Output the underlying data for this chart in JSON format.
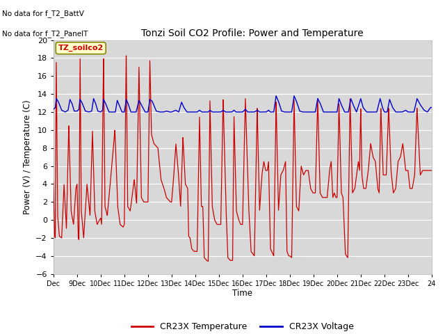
{
  "title": "Tonzi Soil CO2 Profile: Power and Temperature",
  "ylabel": "Power (V) / Temperature (C)",
  "xlabel": "Time",
  "top_left_text1": "No data for f_T2_BattV",
  "top_left_text2": "No data for f_T2_PanelT",
  "legend_label_box": "TZ_soilco2",
  "legend_entries": [
    "CR23X Temperature",
    "CR23X Voltage"
  ],
  "legend_colors": [
    "#cc0000",
    "#0000cc"
  ],
  "ylim": [
    -6,
    20
  ],
  "yticks": [
    -6,
    -4,
    -2,
    0,
    2,
    4,
    6,
    8,
    10,
    12,
    14,
    16,
    18,
    20
  ],
  "xlim": [
    8,
    24
  ],
  "background_color": "#ffffff",
  "plot_bg_color": "#d8d8d8",
  "grid_color": "#ffffff",
  "red_color": "#cc0000",
  "blue_color": "#0000cc",
  "red_kp": [
    [
      8.0,
      4.2
    ],
    [
      8.05,
      -1.8
    ],
    [
      8.08,
      -2.0
    ],
    [
      8.12,
      18.0
    ],
    [
      8.18,
      0.5
    ],
    [
      8.25,
      -1.8
    ],
    [
      8.35,
      -2.0
    ],
    [
      8.45,
      4.0
    ],
    [
      8.55,
      -1.0
    ],
    [
      8.65,
      10.5
    ],
    [
      8.75,
      1.0
    ],
    [
      8.85,
      -0.5
    ],
    [
      8.95,
      3.5
    ],
    [
      9.0,
      4.0
    ],
    [
      9.05,
      -2.0
    ],
    [
      9.08,
      -2.2
    ],
    [
      9.13,
      18.0
    ],
    [
      9.18,
      1.0
    ],
    [
      9.28,
      -2.0
    ],
    [
      9.42,
      4.0
    ],
    [
      9.55,
      0.5
    ],
    [
      9.65,
      10.0
    ],
    [
      9.75,
      1.0
    ],
    [
      9.85,
      -0.5
    ],
    [
      9.95,
      0.0
    ],
    [
      10.0,
      0.2
    ],
    [
      10.04,
      -0.5
    ],
    [
      10.12,
      18.2
    ],
    [
      10.18,
      1.5
    ],
    [
      10.28,
      0.5
    ],
    [
      10.42,
      4.5
    ],
    [
      10.6,
      10.0
    ],
    [
      10.72,
      1.5
    ],
    [
      10.82,
      -0.5
    ],
    [
      10.95,
      -0.8
    ],
    [
      11.0,
      -0.5
    ],
    [
      11.08,
      18.5
    ],
    [
      11.14,
      1.5
    ],
    [
      11.25,
      1.0
    ],
    [
      11.42,
      4.5
    ],
    [
      11.52,
      1.8
    ],
    [
      11.62,
      17.0
    ],
    [
      11.72,
      2.5
    ],
    [
      11.82,
      2.0
    ],
    [
      11.95,
      2.0
    ],
    [
      12.0,
      2.0
    ],
    [
      12.08,
      17.8
    ],
    [
      12.15,
      9.5
    ],
    [
      12.25,
      8.5
    ],
    [
      12.42,
      8.0
    ],
    [
      12.55,
      4.5
    ],
    [
      12.68,
      3.5
    ],
    [
      12.78,
      2.5
    ],
    [
      12.88,
      2.2
    ],
    [
      12.95,
      2.0
    ],
    [
      13.0,
      2.0
    ],
    [
      13.08,
      4.5
    ],
    [
      13.18,
      8.5
    ],
    [
      13.28,
      5.5
    ],
    [
      13.38,
      1.5
    ],
    [
      13.48,
      9.2
    ],
    [
      13.58,
      4.0
    ],
    [
      13.68,
      3.5
    ],
    [
      13.72,
      -1.8
    ],
    [
      13.78,
      -2.0
    ],
    [
      13.85,
      -3.2
    ],
    [
      13.95,
      -3.5
    ],
    [
      14.0,
      -3.5
    ],
    [
      14.08,
      -3.5
    ],
    [
      14.18,
      11.5
    ],
    [
      14.26,
      1.5
    ],
    [
      14.32,
      1.5
    ],
    [
      14.38,
      -4.2
    ],
    [
      14.48,
      -4.5
    ],
    [
      14.55,
      -4.6
    ],
    [
      14.62,
      13.5
    ],
    [
      14.72,
      1.5
    ],
    [
      14.82,
      0.0
    ],
    [
      14.92,
      -0.5
    ],
    [
      14.98,
      -0.5
    ],
    [
      15.0,
      -0.5
    ],
    [
      15.08,
      -0.5
    ],
    [
      15.18,
      13.5
    ],
    [
      15.3,
      1.5
    ],
    [
      15.38,
      -4.2
    ],
    [
      15.48,
      -4.5
    ],
    [
      15.58,
      -4.5
    ],
    [
      15.64,
      11.5
    ],
    [
      15.74,
      1.0
    ],
    [
      15.84,
      0.0
    ],
    [
      15.92,
      -0.5
    ],
    [
      15.98,
      -0.5
    ],
    [
      16.0,
      -0.5
    ],
    [
      16.12,
      13.5
    ],
    [
      16.26,
      1.5
    ],
    [
      16.36,
      -3.5
    ],
    [
      16.5,
      -4.0
    ],
    [
      16.62,
      12.5
    ],
    [
      16.72,
      1.0
    ],
    [
      16.82,
      5.0
    ],
    [
      16.9,
      6.5
    ],
    [
      16.98,
      5.5
    ],
    [
      17.0,
      5.5
    ],
    [
      17.05,
      5.5
    ],
    [
      17.1,
      6.5
    ],
    [
      17.18,
      -3.2
    ],
    [
      17.32,
      -4.0
    ],
    [
      17.42,
      13.2
    ],
    [
      17.52,
      1.0
    ],
    [
      17.62,
      5.0
    ],
    [
      17.72,
      5.5
    ],
    [
      17.82,
      6.5
    ],
    [
      17.88,
      -3.5
    ],
    [
      17.95,
      -4.0
    ],
    [
      18.0,
      -4.0
    ],
    [
      18.08,
      -4.2
    ],
    [
      18.18,
      13.5
    ],
    [
      18.28,
      1.5
    ],
    [
      18.38,
      1.0
    ],
    [
      18.48,
      6.0
    ],
    [
      18.58,
      5.0
    ],
    [
      18.68,
      5.5
    ],
    [
      18.78,
      5.5
    ],
    [
      18.88,
      3.5
    ],
    [
      18.98,
      3.0
    ],
    [
      19.0,
      3.0
    ],
    [
      19.08,
      3.0
    ],
    [
      19.18,
      13.5
    ],
    [
      19.28,
      3.0
    ],
    [
      19.38,
      2.5
    ],
    [
      19.48,
      2.5
    ],
    [
      19.58,
      2.5
    ],
    [
      19.68,
      5.5
    ],
    [
      19.75,
      6.5
    ],
    [
      19.82,
      2.5
    ],
    [
      19.88,
      3.0
    ],
    [
      19.95,
      2.5
    ],
    [
      20.0,
      2.5
    ],
    [
      20.08,
      13.0
    ],
    [
      20.18,
      3.0
    ],
    [
      20.25,
      2.5
    ],
    [
      20.35,
      -3.8
    ],
    [
      20.45,
      -4.2
    ],
    [
      20.55,
      13.5
    ],
    [
      20.65,
      3.0
    ],
    [
      20.75,
      3.5
    ],
    [
      20.85,
      5.5
    ],
    [
      20.9,
      6.5
    ],
    [
      20.95,
      5.5
    ],
    [
      21.0,
      12.5
    ],
    [
      21.05,
      5.0
    ],
    [
      21.12,
      3.5
    ],
    [
      21.22,
      3.5
    ],
    [
      21.32,
      5.5
    ],
    [
      21.42,
      8.5
    ],
    [
      21.52,
      7.0
    ],
    [
      21.62,
      6.5
    ],
    [
      21.72,
      3.5
    ],
    [
      21.78,
      3.0
    ],
    [
      21.85,
      12.5
    ],
    [
      21.95,
      5.0
    ],
    [
      22.0,
      5.0
    ],
    [
      22.08,
      5.0
    ],
    [
      22.18,
      12.5
    ],
    [
      22.28,
      5.5
    ],
    [
      22.38,
      3.0
    ],
    [
      22.48,
      3.5
    ],
    [
      22.58,
      6.5
    ],
    [
      22.68,
      7.0
    ],
    [
      22.78,
      8.5
    ],
    [
      22.9,
      5.5
    ],
    [
      22.98,
      5.5
    ],
    [
      23.0,
      5.5
    ],
    [
      23.08,
      3.5
    ],
    [
      23.18,
      3.5
    ],
    [
      23.28,
      5.0
    ],
    [
      23.38,
      12.5
    ],
    [
      23.52,
      5.0
    ],
    [
      23.62,
      5.5
    ],
    [
      23.72,
      5.5
    ],
    [
      23.85,
      5.5
    ],
    [
      23.95,
      5.5
    ],
    [
      24.0,
      5.5
    ]
  ],
  "blue_kp": [
    [
      8.0,
      12.3
    ],
    [
      8.08,
      12.5
    ],
    [
      8.12,
      13.5
    ],
    [
      8.2,
      13.2
    ],
    [
      8.35,
      12.2
    ],
    [
      8.5,
      12.0
    ],
    [
      8.62,
      12.2
    ],
    [
      8.7,
      13.4
    ],
    [
      8.78,
      13.0
    ],
    [
      8.88,
      12.1
    ],
    [
      9.0,
      12.1
    ],
    [
      9.08,
      12.3
    ],
    [
      9.12,
      13.4
    ],
    [
      9.2,
      13.1
    ],
    [
      9.35,
      12.1
    ],
    [
      9.5,
      12.0
    ],
    [
      9.62,
      12.1
    ],
    [
      9.7,
      13.5
    ],
    [
      9.78,
      13.0
    ],
    [
      9.88,
      12.1
    ],
    [
      10.0,
      12.0
    ],
    [
      10.08,
      12.2
    ],
    [
      10.12,
      13.4
    ],
    [
      10.2,
      13.0
    ],
    [
      10.35,
      12.0
    ],
    [
      10.5,
      12.0
    ],
    [
      10.62,
      12.0
    ],
    [
      10.7,
      13.3
    ],
    [
      10.78,
      12.8
    ],
    [
      10.9,
      12.0
    ],
    [
      11.0,
      12.0
    ],
    [
      11.08,
      13.4
    ],
    [
      11.15,
      13.0
    ],
    [
      11.28,
      12.0
    ],
    [
      11.5,
      12.0
    ],
    [
      11.62,
      13.3
    ],
    [
      11.72,
      12.8
    ],
    [
      11.88,
      12.0
    ],
    [
      12.0,
      12.0
    ],
    [
      12.08,
      13.4
    ],
    [
      12.18,
      13.2
    ],
    [
      12.35,
      12.1
    ],
    [
      12.5,
      12.0
    ],
    [
      12.65,
      12.0
    ],
    [
      12.78,
      12.1
    ],
    [
      12.92,
      12.0
    ],
    [
      13.0,
      12.0
    ],
    [
      13.08,
      12.1
    ],
    [
      13.18,
      12.2
    ],
    [
      13.3,
      12.0
    ],
    [
      13.42,
      13.1
    ],
    [
      13.52,
      12.5
    ],
    [
      13.65,
      12.0
    ],
    [
      13.78,
      12.0
    ],
    [
      13.92,
      12.0
    ],
    [
      14.0,
      12.0
    ],
    [
      14.08,
      12.0
    ],
    [
      14.18,
      12.2
    ],
    [
      14.28,
      12.0
    ],
    [
      14.42,
      12.0
    ],
    [
      14.55,
      12.0
    ],
    [
      14.62,
      12.2
    ],
    [
      14.72,
      12.0
    ],
    [
      14.88,
      12.0
    ],
    [
      15.0,
      12.0
    ],
    [
      15.08,
      12.0
    ],
    [
      15.18,
      12.2
    ],
    [
      15.28,
      12.0
    ],
    [
      15.42,
      12.0
    ],
    [
      15.55,
      12.0
    ],
    [
      15.64,
      12.2
    ],
    [
      15.72,
      12.0
    ],
    [
      15.88,
      12.0
    ],
    [
      16.0,
      12.0
    ],
    [
      16.12,
      12.3
    ],
    [
      16.22,
      12.0
    ],
    [
      16.35,
      12.0
    ],
    [
      16.5,
      12.0
    ],
    [
      16.62,
      12.2
    ],
    [
      16.72,
      12.0
    ],
    [
      16.88,
      12.0
    ],
    [
      17.0,
      12.0
    ],
    [
      17.1,
      12.2
    ],
    [
      17.18,
      12.0
    ],
    [
      17.32,
      12.0
    ],
    [
      17.42,
      13.8
    ],
    [
      17.52,
      13.2
    ],
    [
      17.65,
      12.1
    ],
    [
      17.78,
      12.0
    ],
    [
      17.88,
      12.0
    ],
    [
      18.0,
      12.0
    ],
    [
      18.08,
      12.0
    ],
    [
      18.18,
      13.8
    ],
    [
      18.28,
      13.2
    ],
    [
      18.42,
      12.1
    ],
    [
      18.55,
      12.0
    ],
    [
      18.68,
      12.0
    ],
    [
      18.82,
      12.0
    ],
    [
      19.0,
      12.0
    ],
    [
      19.08,
      12.0
    ],
    [
      19.18,
      13.5
    ],
    [
      19.28,
      13.0
    ],
    [
      19.42,
      12.0
    ],
    [
      19.55,
      12.0
    ],
    [
      19.68,
      12.0
    ],
    [
      19.82,
      12.0
    ],
    [
      20.0,
      12.0
    ],
    [
      20.08,
      13.5
    ],
    [
      20.18,
      12.8
    ],
    [
      20.32,
      12.0
    ],
    [
      20.48,
      12.0
    ],
    [
      20.58,
      13.5
    ],
    [
      20.68,
      12.8
    ],
    [
      20.82,
      12.0
    ],
    [
      21.0,
      13.5
    ],
    [
      21.1,
      12.5
    ],
    [
      21.25,
      12.0
    ],
    [
      21.42,
      12.0
    ],
    [
      21.55,
      12.0
    ],
    [
      21.68,
      12.0
    ],
    [
      21.82,
      13.5
    ],
    [
      21.92,
      12.5
    ],
    [
      22.0,
      12.0
    ],
    [
      22.12,
      12.0
    ],
    [
      22.22,
      13.4
    ],
    [
      22.35,
      12.5
    ],
    [
      22.48,
      12.0
    ],
    [
      22.62,
      12.0
    ],
    [
      22.75,
      12.0
    ],
    [
      22.9,
      12.2
    ],
    [
      23.0,
      12.0
    ],
    [
      23.12,
      12.0
    ],
    [
      23.25,
      12.0
    ],
    [
      23.38,
      13.5
    ],
    [
      23.52,
      12.8
    ],
    [
      23.68,
      12.2
    ],
    [
      23.82,
      12.0
    ],
    [
      23.95,
      12.5
    ],
    [
      24.0,
      12.5
    ]
  ]
}
